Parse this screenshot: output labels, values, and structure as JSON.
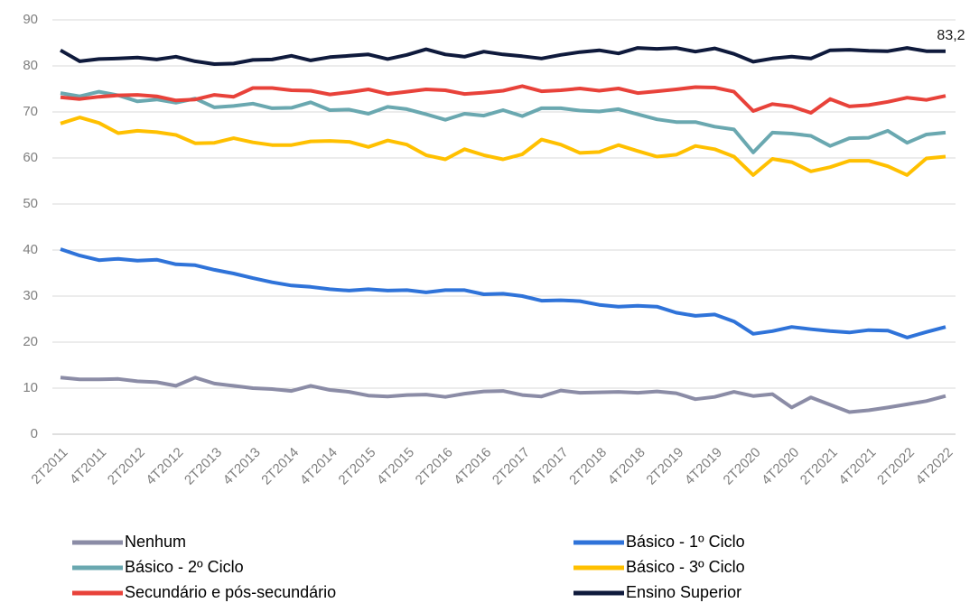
{
  "chart_data": {
    "type": "line",
    "categories": [
      "2T2011",
      null,
      "4T2011",
      null,
      "2T2012",
      null,
      "4T2012",
      null,
      "2T2013",
      null,
      "4T2013",
      null,
      "2T2014",
      null,
      "4T2014",
      null,
      "2T2015",
      null,
      "4T2015",
      null,
      "2T2016",
      null,
      "4T2016",
      null,
      "2T2017",
      null,
      "4T2017",
      null,
      "2T2018",
      null,
      "4T2018",
      null,
      "2T2019",
      null,
      "4T2019",
      null,
      "2T2020",
      null,
      "4T2020",
      null,
      "2T2021",
      null,
      "4T2021",
      null,
      "2T2022",
      null,
      "4T2022"
    ],
    "series": [
      {
        "name": "Nenhum",
        "color": "#8b8ca6",
        "values": [
          12.3,
          11.9,
          11.9,
          12,
          11.5,
          11.3,
          10.5,
          12.3,
          11,
          10.5,
          10,
          9.8,
          9.4,
          10.5,
          9.6,
          9.2,
          8.4,
          8.2,
          8.5,
          8.6,
          8.1,
          8.8,
          9.3,
          9.4,
          8.5,
          8.2,
          9.5,
          9,
          9.1,
          9.2,
          9,
          9.3,
          8.9,
          7.6,
          8.1,
          9.2,
          8.3,
          8.7,
          5.8,
          8,
          6.4,
          4.8,
          5.2,
          5.8,
          6.5,
          7.2,
          8.3
        ]
      },
      {
        "name": "Básico - 1º Ciclo",
        "color": "#2f73d9",
        "values": [
          40.2,
          38.8,
          37.8,
          38.1,
          37.7,
          37.9,
          36.9,
          36.7,
          35.7,
          34.9,
          33.9,
          33,
          32.3,
          32,
          31.5,
          31.2,
          31.5,
          31.2,
          31.3,
          30.8,
          31.3,
          31.3,
          30.4,
          30.5,
          30,
          29,
          29.1,
          28.9,
          28.1,
          27.7,
          27.9,
          27.7,
          26.4,
          25.7,
          26,
          24.5,
          21.8,
          22.4,
          23.3,
          22.8,
          22.4,
          22.1,
          22.6,
          22.5,
          21,
          22.2,
          23.3
        ]
      },
      {
        "name": "Básico - 2º Ciclo",
        "color": "#6aa8b0",
        "values": [
          74.1,
          73.4,
          74.4,
          73.6,
          72.3,
          72.7,
          72,
          72.9,
          71,
          71.3,
          71.8,
          70.8,
          70.9,
          72.1,
          70.4,
          70.5,
          69.6,
          71.1,
          70.6,
          69.5,
          68.3,
          69.6,
          69.2,
          70.4,
          69.1,
          70.8,
          70.8,
          70.3,
          70.1,
          70.6,
          69.5,
          68.4,
          67.8,
          67.8,
          66.8,
          66.2,
          61.2,
          65.5,
          65.3,
          64.8,
          62.6,
          64.3,
          64.4,
          65.9,
          63.3,
          65.1,
          65.5
        ]
      },
      {
        "name": "Básico - 3º Ciclo",
        "color": "#ffc000",
        "values": [
          67.5,
          68.8,
          67.6,
          65.4,
          65.9,
          65.6,
          65,
          63.2,
          63.3,
          64.3,
          63.4,
          62.8,
          62.8,
          63.6,
          63.7,
          63.5,
          62.4,
          63.8,
          62.9,
          60.6,
          59.7,
          61.9,
          60.6,
          59.7,
          60.8,
          64,
          62.9,
          61.1,
          61.3,
          62.8,
          61.5,
          60.3,
          60.7,
          62.6,
          61.9,
          60.3,
          56.3,
          59.8,
          59.1,
          57.1,
          58,
          59.4,
          59.4,
          58.2,
          56.3,
          59.9,
          60.3
        ]
      },
      {
        "name": "Secundário e pós-secundário",
        "color": "#e8423a",
        "values": [
          73.2,
          72.8,
          73.3,
          73.6,
          73.7,
          73.4,
          72.5,
          72.7,
          73.7,
          73.3,
          75.2,
          75.2,
          74.7,
          74.6,
          73.8,
          74.3,
          74.9,
          73.9,
          74.4,
          74.9,
          74.7,
          73.9,
          74.2,
          74.6,
          75.6,
          74.5,
          74.7,
          75.1,
          74.6,
          75.1,
          74.1,
          74.5,
          74.9,
          75.4,
          75.3,
          74.4,
          70.2,
          71.7,
          71.2,
          69.8,
          72.8,
          71.2,
          71.5,
          72.2,
          73.1,
          72.6,
          73.5
        ]
      },
      {
        "name": "Ensino Superior",
        "color": "#0f1a3c",
        "values": [
          83.4,
          81,
          81.5,
          81.6,
          81.8,
          81.4,
          82,
          81,
          80.4,
          80.5,
          81.3,
          81.4,
          82.2,
          81.2,
          81.9,
          82.2,
          82.5,
          81.5,
          82.4,
          83.6,
          82.5,
          82,
          83.1,
          82.5,
          82.1,
          81.6,
          82.4,
          83,
          83.4,
          82.7,
          83.9,
          83.7,
          83.9,
          83.1,
          83.8,
          82.6,
          80.9,
          81.6,
          82,
          81.6,
          83.4,
          83.5,
          83.3,
          83.2,
          83.9,
          83.2,
          83.2
        ],
        "value_labels": [
          null,
          null,
          null,
          null,
          null,
          null,
          null,
          null,
          null,
          null,
          null,
          null,
          null,
          null,
          null,
          null,
          null,
          null,
          null,
          null,
          null,
          null,
          null,
          null,
          null,
          null,
          null,
          null,
          null,
          null,
          null,
          null,
          null,
          null,
          null,
          null,
          null,
          null,
          null,
          null,
          null,
          null,
          null,
          null,
          null,
          null,
          "83,2"
        ]
      }
    ],
    "ylim": [
      0,
      90
    ],
    "yticks": [
      0,
      10,
      20,
      30,
      40,
      50,
      60,
      70,
      80,
      90
    ],
    "grid": true,
    "legend": "bottom"
  }
}
